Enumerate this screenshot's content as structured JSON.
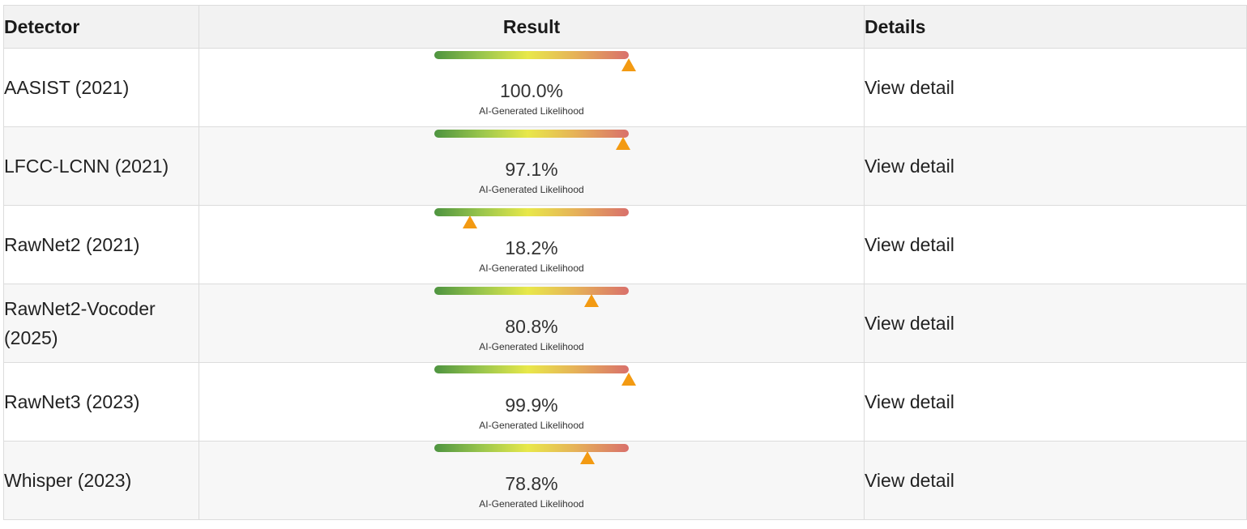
{
  "table": {
    "headers": {
      "detector": "Detector",
      "result": "Result",
      "details": "Details"
    },
    "rows": [
      {
        "detector": "AASIST (2021)",
        "score_percent": 100.0,
        "score_label": "100.0%",
        "caption": "AI-Generated Likelihood",
        "details_link": "View detail"
      },
      {
        "detector": "LFCC-LCNN (2021)",
        "score_percent": 97.1,
        "score_label": "97.1%",
        "caption": "AI-Generated Likelihood",
        "details_link": "View detail"
      },
      {
        "detector": "RawNet2 (2021)",
        "score_percent": 18.2,
        "score_label": "18.2%",
        "caption": "AI-Generated Likelihood",
        "details_link": "View detail"
      },
      {
        "detector": "RawNet2-Vocoder (2025)",
        "score_percent": 80.8,
        "score_label": "80.8%",
        "caption": "AI-Generated Likelihood",
        "details_link": "View detail"
      },
      {
        "detector": "RawNet3 (2023)",
        "score_percent": 99.9,
        "score_label": "99.9%",
        "caption": "AI-Generated Likelihood",
        "details_link": "View detail"
      },
      {
        "detector": "Whisper (2023)",
        "score_percent": 78.8,
        "score_label": "78.8%",
        "caption": "AI-Generated Likelihood",
        "details_link": "View detail"
      }
    ]
  },
  "colors": {
    "gauge_start": "#4e9440",
    "gauge_mid": "#e8e84a",
    "gauge_end": "#d9706b",
    "marker": "#f39a12",
    "header_bg": "#f2f2f2"
  },
  "icons": {
    "marker": "triangle-marker-icon"
  }
}
